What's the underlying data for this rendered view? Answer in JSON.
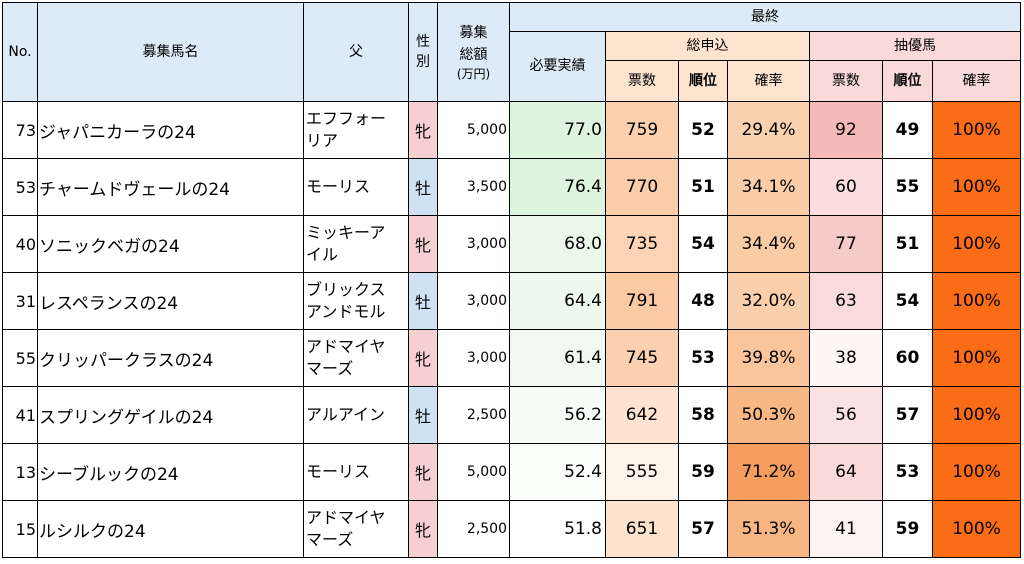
{
  "header": {
    "no": "No.",
    "horse_name": "募集馬名",
    "sire": "父",
    "sex": "性別",
    "fund_total": "募集総額",
    "fund_unit": "(万円)",
    "final": "最終",
    "required_record": "必要実績",
    "total_application": "総申込",
    "priority": "抽優馬",
    "votes": "票数",
    "rank": "順位",
    "rate": "確率"
  },
  "colors": {
    "header_blue": "#dcebf7",
    "header_orange": "#fde4cf",
    "header_pink": "#f9dad8",
    "sex_male": "#cfe2f3",
    "sex_female": "#f6cfd3",
    "rate_full": "#fb6c16"
  },
  "rows": [
    {
      "no": "73",
      "name": "ジャパニカーラの24",
      "sire": "エフフォー\nリア",
      "sex": "牝",
      "sex_key": "f",
      "fund": "5,000",
      "required": "77.0",
      "total_votes": "759",
      "total_rank": "52",
      "total_rate": "29.4%",
      "prio_votes": "92",
      "prio_rank": "49",
      "prio_rate": "100%"
    },
    {
      "no": "53",
      "name": "チャームドヴェールの24",
      "sire": "モーリス",
      "sex": "牡",
      "sex_key": "m",
      "fund": "3,500",
      "required": "76.4",
      "total_votes": "770",
      "total_rank": "51",
      "total_rate": "34.1%",
      "prio_votes": "60",
      "prio_rank": "55",
      "prio_rate": "100%"
    },
    {
      "no": "40",
      "name": "ソニックベガの24",
      "sire": "ミッキーア\nイル",
      "sex": "牝",
      "sex_key": "f",
      "fund": "3,000",
      "required": "68.0",
      "total_votes": "735",
      "total_rank": "54",
      "total_rate": "34.4%",
      "prio_votes": "77",
      "prio_rank": "51",
      "prio_rate": "100%"
    },
    {
      "no": "31",
      "name": "レスペランスの24",
      "sire": "ブリックス\nアンドモル",
      "sex": "牡",
      "sex_key": "m",
      "fund": "3,000",
      "required": "64.4",
      "total_votes": "791",
      "total_rank": "48",
      "total_rate": "32.0%",
      "prio_votes": "63",
      "prio_rank": "54",
      "prio_rate": "100%"
    },
    {
      "no": "55",
      "name": "クリッパークラスの24",
      "sire": "アドマイヤ\nマーズ",
      "sex": "牝",
      "sex_key": "f",
      "fund": "3,000",
      "required": "61.4",
      "total_votes": "745",
      "total_rank": "53",
      "total_rate": "39.8%",
      "prio_votes": "38",
      "prio_rank": "60",
      "prio_rate": "100%"
    },
    {
      "no": "41",
      "name": "スプリングゲイルの24",
      "sire": "アルアイン",
      "sex": "牡",
      "sex_key": "m",
      "fund": "2,500",
      "required": "56.2",
      "total_votes": "642",
      "total_rank": "58",
      "total_rate": "50.3%",
      "prio_votes": "56",
      "prio_rank": "57",
      "prio_rate": "100%"
    },
    {
      "no": "13",
      "name": "シーブルックの24",
      "sire": "モーリス",
      "sex": "牝",
      "sex_key": "f",
      "fund": "5,000",
      "required": "52.4",
      "total_votes": "555",
      "total_rank": "59",
      "total_rate": "71.2%",
      "prio_votes": "64",
      "prio_rank": "53",
      "prio_rate": "100%"
    },
    {
      "no": "15",
      "name": "ルシルクの24",
      "sire": "アドマイヤ\nマーズ",
      "sex": "牝",
      "sex_key": "f",
      "fund": "2,500",
      "required": "51.8",
      "total_votes": "651",
      "total_rank": "57",
      "total_rate": "51.3%",
      "prio_votes": "41",
      "prio_rank": "59",
      "prio_rate": "100%"
    }
  ]
}
